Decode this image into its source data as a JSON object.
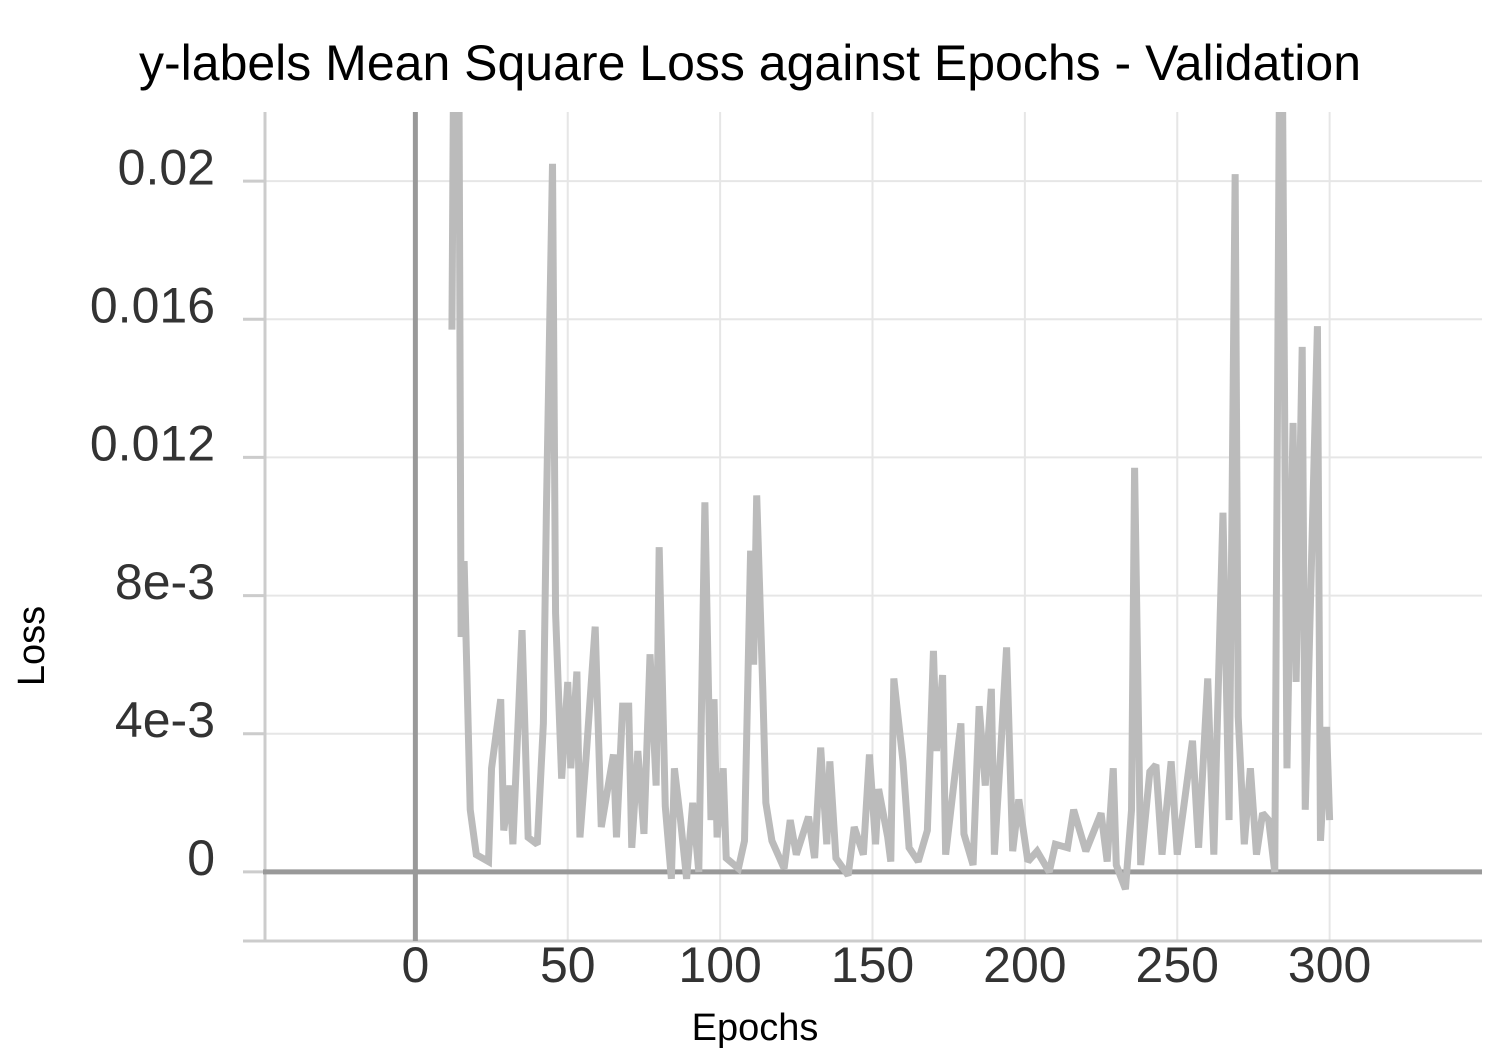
{
  "chart_data": {
    "type": "line",
    "title": "y-labels Mean Square Loss against Epochs - Validation",
    "x_label": "Epochs",
    "y_label": "Loss",
    "xlim": [
      -50,
      350
    ],
    "xticks": [
      0,
      50,
      100,
      150,
      200,
      250,
      300
    ],
    "ylim": [
      -0.002,
      0.022
    ],
    "yticks": [
      0,
      {
        "value": 0.004,
        "label": "4e-3"
      },
      {
        "value": 0.008,
        "label": "8e-3"
      },
      0.012,
      0.016,
      0.02
    ],
    "grid": true,
    "x": [
      12,
      13,
      14,
      15,
      16,
      18,
      20,
      24,
      25,
      28,
      29,
      31,
      32,
      35,
      37,
      40,
      42,
      43,
      45,
      46,
      48,
      50,
      51,
      53,
      54,
      56,
      59,
      61,
      65,
      66,
      68,
      70,
      71,
      73,
      75,
      77,
      79,
      80,
      82,
      84,
      85,
      87,
      89,
      91,
      93,
      95,
      97,
      98,
      99,
      101,
      102,
      106,
      108,
      110,
      111,
      112,
      114,
      115,
      117,
      121,
      123,
      125,
      129,
      131,
      133,
      135,
      136,
      138,
      142,
      144,
      147,
      149,
      151,
      152,
      155,
      156,
      157,
      160,
      162,
      165,
      168,
      170,
      171,
      173,
      174,
      179,
      180,
      183,
      185,
      187,
      189,
      190,
      192,
      194,
      196,
      198,
      201,
      204,
      208,
      210,
      214,
      216,
      218,
      220,
      225,
      227,
      229,
      230,
      233,
      235,
      236,
      238,
      241,
      243,
      245,
      248,
      250,
      252,
      255,
      257,
      260,
      262,
      265,
      267,
      269,
      270,
      272,
      274,
      276,
      278,
      280,
      282,
      284,
      286,
      288,
      289,
      291,
      292,
      296,
      297,
      299,
      300
    ],
    "series": [
      {
        "name": "Validation",
        "color": "#bbbbbb",
        "values": [
          0.0157,
          0.03,
          0.03,
          0.0068,
          0.009,
          0.0018,
          0.0005,
          0.0003,
          0.003,
          0.005,
          0.0012,
          0.0025,
          0.0008,
          0.007,
          0.001,
          0.0008,
          0.0043,
          0.0105,
          0.0205,
          0.0075,
          0.0027,
          0.0055,
          0.003,
          0.0058,
          0.001,
          0.0033,
          0.0071,
          0.0013,
          0.0034,
          0.001,
          0.0048,
          0.0048,
          0.0007,
          0.0035,
          0.0011,
          0.0063,
          0.0025,
          0.0094,
          0.0019,
          -0.0002,
          0.003,
          0.0015,
          -0.0002,
          0.002,
          0.0,
          0.0107,
          0.0015,
          0.005,
          0.001,
          0.003,
          0.0004,
          0.0001,
          0.0009,
          0.0093,
          0.006,
          0.0109,
          0.0053,
          0.002,
          0.0009,
          0.0001,
          0.0015,
          0.0005,
          0.0016,
          0.0004,
          0.0036,
          0.0008,
          0.0032,
          0.0004,
          -0.0001,
          0.0013,
          0.0005,
          0.0034,
          0.0008,
          0.0024,
          0.001,
          0.0003,
          0.0056,
          0.0032,
          0.0007,
          0.0003,
          0.0012,
          0.0064,
          0.0035,
          0.0057,
          0.0005,
          0.0043,
          0.0011,
          0.0002,
          0.0048,
          0.0025,
          0.0053,
          0.0005,
          0.0034,
          0.0065,
          0.0006,
          0.0021,
          0.0003,
          0.0006,
          0.0,
          0.0008,
          0.0007,
          0.0018,
          0.0012,
          0.0006,
          0.0017,
          0.0003,
          0.003,
          0.0002,
          -0.0005,
          0.0018,
          0.0117,
          0.0002,
          0.0029,
          0.0031,
          0.0005,
          0.0032,
          0.0005,
          0.0018,
          0.0038,
          0.0007,
          0.0056,
          0.0005,
          0.0104,
          0.0015,
          0.0202,
          0.0045,
          0.0008,
          0.003,
          0.0005,
          0.0017,
          0.0015,
          0.0,
          0.03,
          0.003,
          0.013,
          0.0055,
          0.0152,
          0.0018,
          0.0158,
          0.0009,
          0.0042,
          0.0015
        ]
      }
    ]
  }
}
